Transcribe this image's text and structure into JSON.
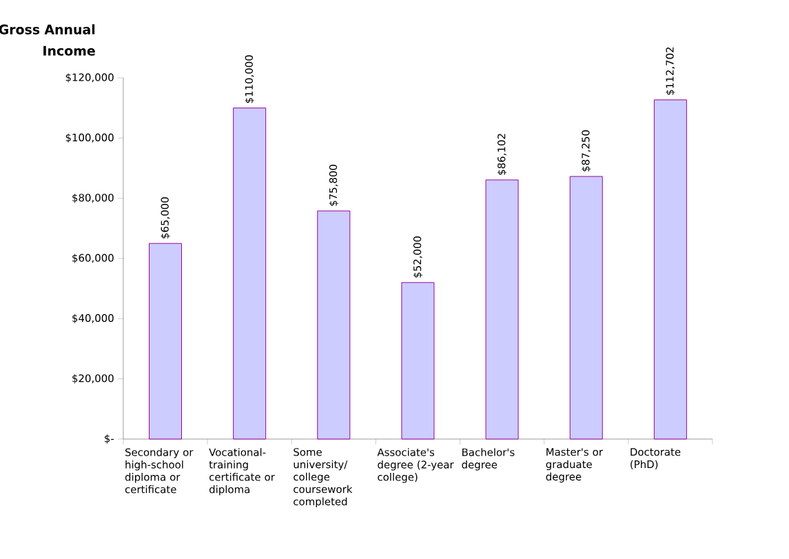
{
  "chart_data": {
    "type": "bar",
    "ylabel": "Gross Annual Income",
    "categories": [
      "Secondary or high-school diploma or certificate",
      "Vocational-training certificate or diploma",
      "Some university/ college coursework completed",
      "Associate's degree (2-year college)",
      "Bachelor's degree",
      "Master's or graduate degree",
      "Doctorate (PhD)"
    ],
    "values": [
      65000,
      110000,
      75800,
      52000,
      86102,
      87250,
      112702
    ],
    "value_labels": [
      "$65,000",
      "$110,000",
      "$75,800",
      "$52,000",
      "$86,102",
      "$87,250",
      "$112,702"
    ],
    "color": "#ccccff",
    "ylim": [
      0,
      120000
    ],
    "yticks": [
      {
        "value": 0,
        "label": "$-"
      },
      {
        "value": 20000,
        "label": "$20,000"
      },
      {
        "value": 40000,
        "label": "$40,000"
      },
      {
        "value": 60000,
        "label": "$60,000"
      },
      {
        "value": 80000,
        "label": "$80,000"
      },
      {
        "value": 100000,
        "label": "$100,000"
      },
      {
        "value": 120000,
        "label": "$120,000"
      }
    ],
    "grid": false
  }
}
